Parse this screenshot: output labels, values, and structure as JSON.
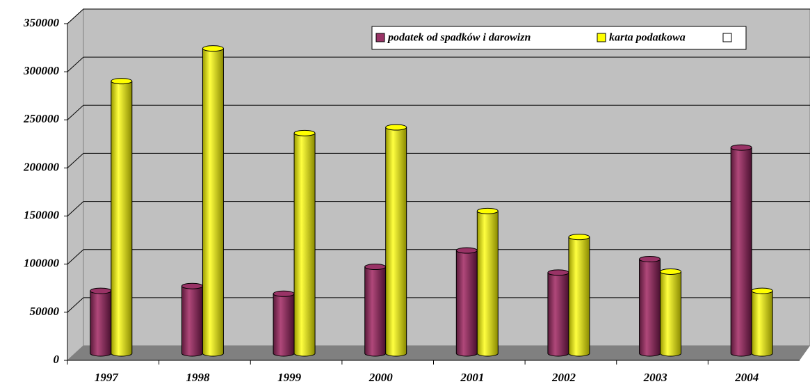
{
  "chart_data": {
    "type": "bar",
    "categories": [
      "1997",
      "1998",
      "1999",
      "2000",
      "2001",
      "2002",
      "2003",
      "2004"
    ],
    "series": [
      {
        "name": "podatek od spadków i darowizn",
        "color": "#993366",
        "values": [
          65000,
          70000,
          62000,
          90000,
          107000,
          84000,
          98000,
          214000
        ]
      },
      {
        "name": "karta podatkowa",
        "color": "#ffff00",
        "values": [
          283000,
          317000,
          229000,
          235000,
          148000,
          121000,
          85000,
          65000
        ]
      }
    ],
    "ylim": [
      0,
      350000
    ],
    "yticks": [
      0,
      50000,
      100000,
      150000,
      200000,
      250000,
      300000,
      350000
    ],
    "grid": true
  }
}
